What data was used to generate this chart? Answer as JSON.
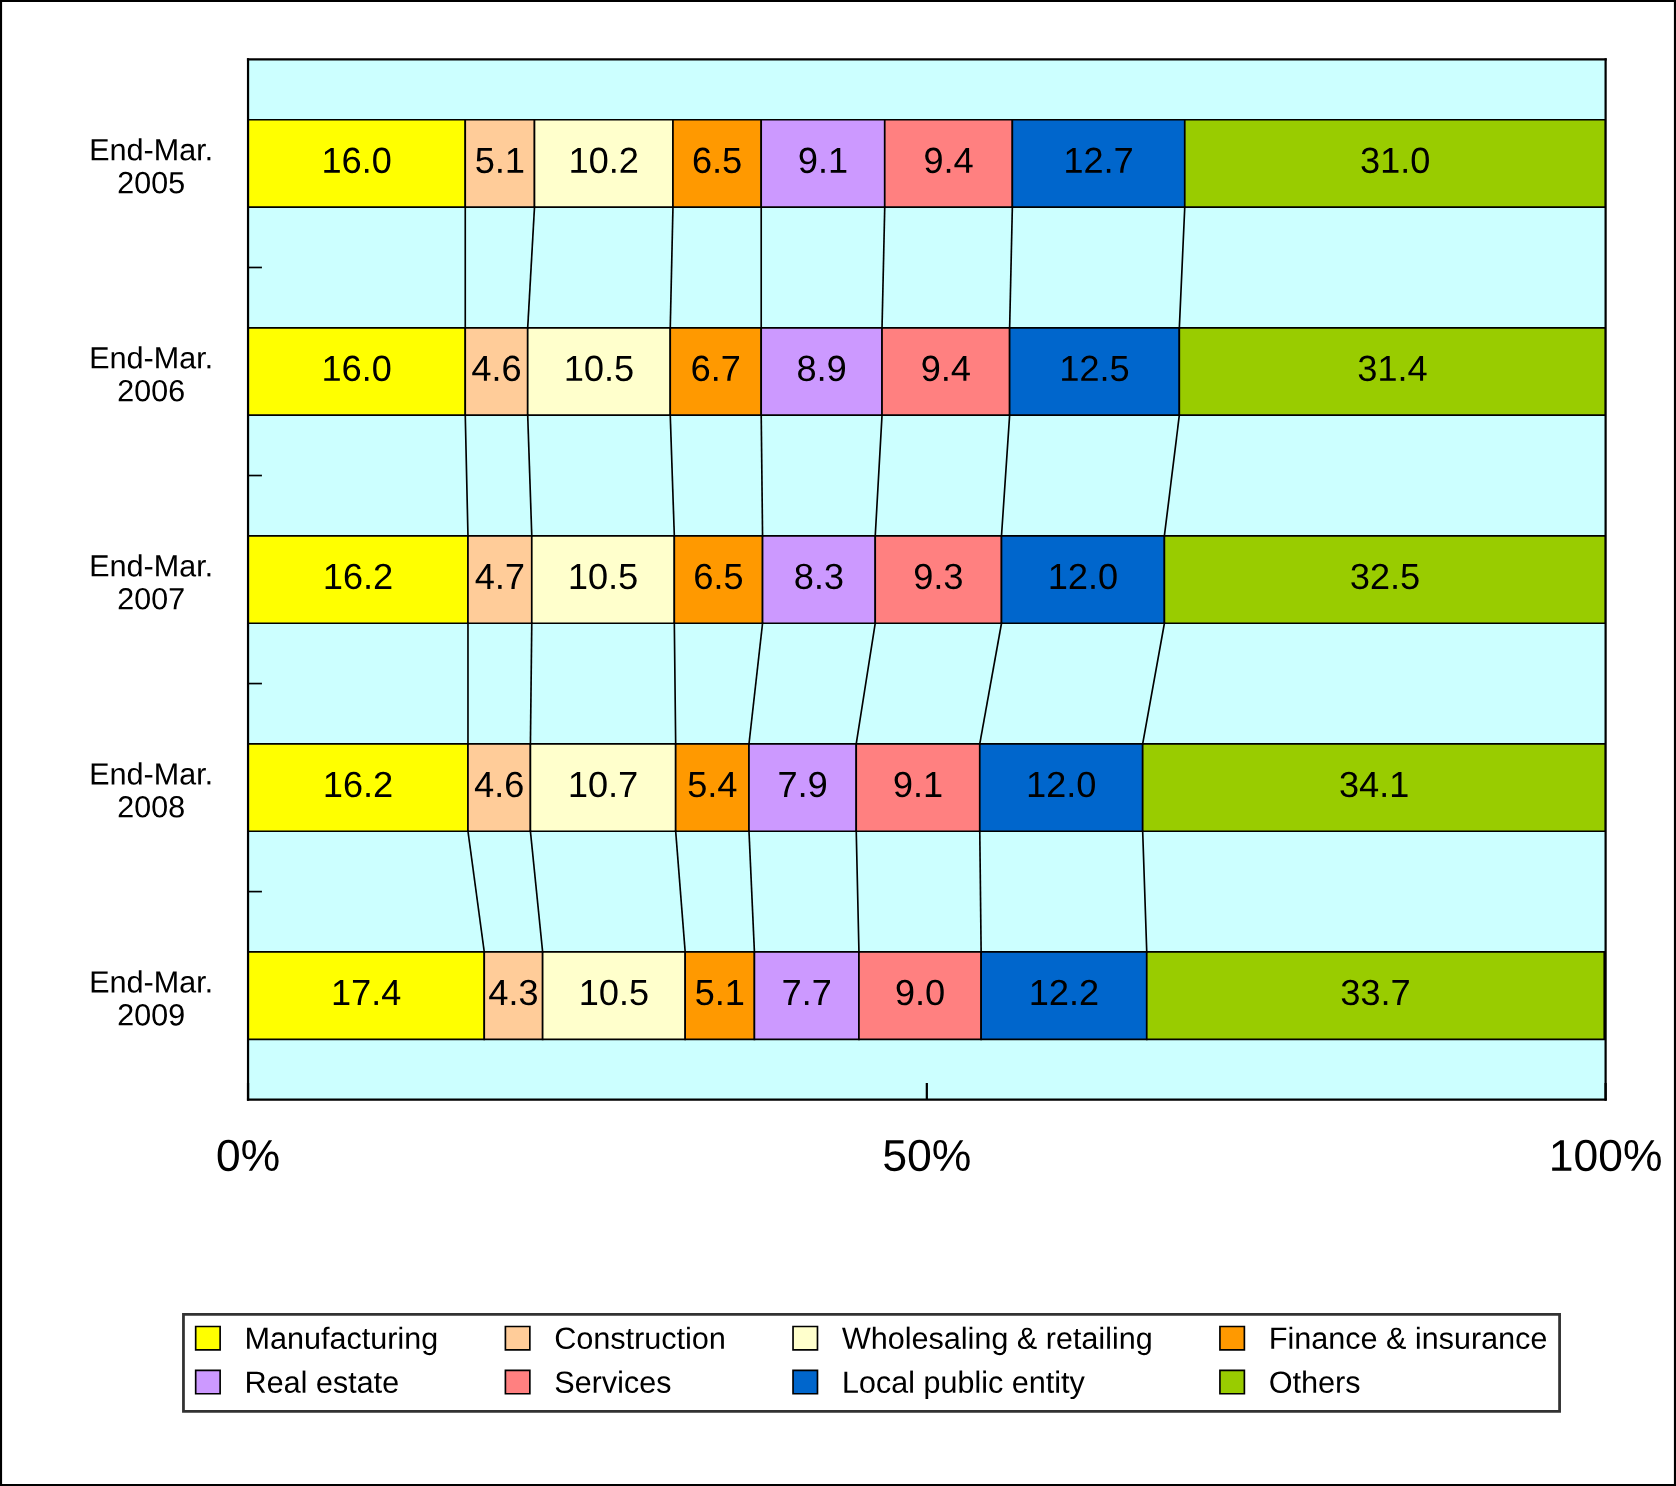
{
  "chart_data": {
    "type": "bar",
    "orientation": "horizontal",
    "stacked": true,
    "legend": "bottom",
    "grid": false,
    "categories": [
      "End-Mar.\n2005",
      "End-Mar.\n2006",
      "End-Mar.\n2007",
      "End-Mar.\n2008",
      "End-Mar.\n2009"
    ],
    "xlim": [
      0,
      100
    ],
    "xticks": [
      {
        "value": 0,
        "label": "0%"
      },
      {
        "value": 50,
        "label": "50%"
      },
      {
        "value": 100,
        "label": "100%"
      }
    ],
    "series": [
      {
        "name": "Manufacturing",
        "color": "#ffff00",
        "values": [
          16.0,
          16.0,
          16.2,
          16.2,
          17.4
        ],
        "value_labels": [
          "16.0",
          "16.0",
          "16.2",
          "16.2",
          "17.4"
        ]
      },
      {
        "name": "Construction",
        "color": "#ffcc99",
        "values": [
          5.1,
          4.6,
          4.7,
          4.6,
          4.3
        ],
        "value_labels": [
          "5.1",
          "4.6",
          "4.7",
          "4.6",
          "4.3"
        ]
      },
      {
        "name": "Wholesaling & retailing",
        "color": "#ffffcc",
        "values": [
          10.2,
          10.5,
          10.5,
          10.7,
          10.5
        ],
        "value_labels": [
          "10.2",
          "10.5",
          "10.5",
          "10.7",
          "10.5"
        ]
      },
      {
        "name": "Finance & insurance",
        "color": "#ff9900",
        "values": [
          6.5,
          6.7,
          6.5,
          5.4,
          5.1
        ],
        "value_labels": [
          "6.5",
          "6.7",
          "6.5",
          "5.4",
          "5.1"
        ]
      },
      {
        "name": "Real estate",
        "color": "#cc99ff",
        "values": [
          9.1,
          8.9,
          8.3,
          7.9,
          7.7
        ],
        "value_labels": [
          "9.1",
          "8.9",
          "8.3",
          "7.9",
          "7.7"
        ]
      },
      {
        "name": "Services",
        "color": "#ff8080",
        "values": [
          9.4,
          9.4,
          9.3,
          9.1,
          9.0
        ],
        "value_labels": [
          "9.4",
          "9.4",
          "9.3",
          "9.1",
          "9.0"
        ]
      },
      {
        "name": "Local public entity",
        "color": "#0066cc",
        "values": [
          12.7,
          12.5,
          12.0,
          12.0,
          12.2
        ],
        "value_labels": [
          "12.7",
          "12.5",
          "12.0",
          "12.0",
          "12.2"
        ]
      },
      {
        "name": "Others",
        "color": "#99cc00",
        "values": [
          31.0,
          31.4,
          32.5,
          34.1,
          33.7
        ],
        "value_labels": [
          "31.0",
          "31.4",
          "32.5",
          "34.1",
          "33.7"
        ]
      }
    ]
  }
}
